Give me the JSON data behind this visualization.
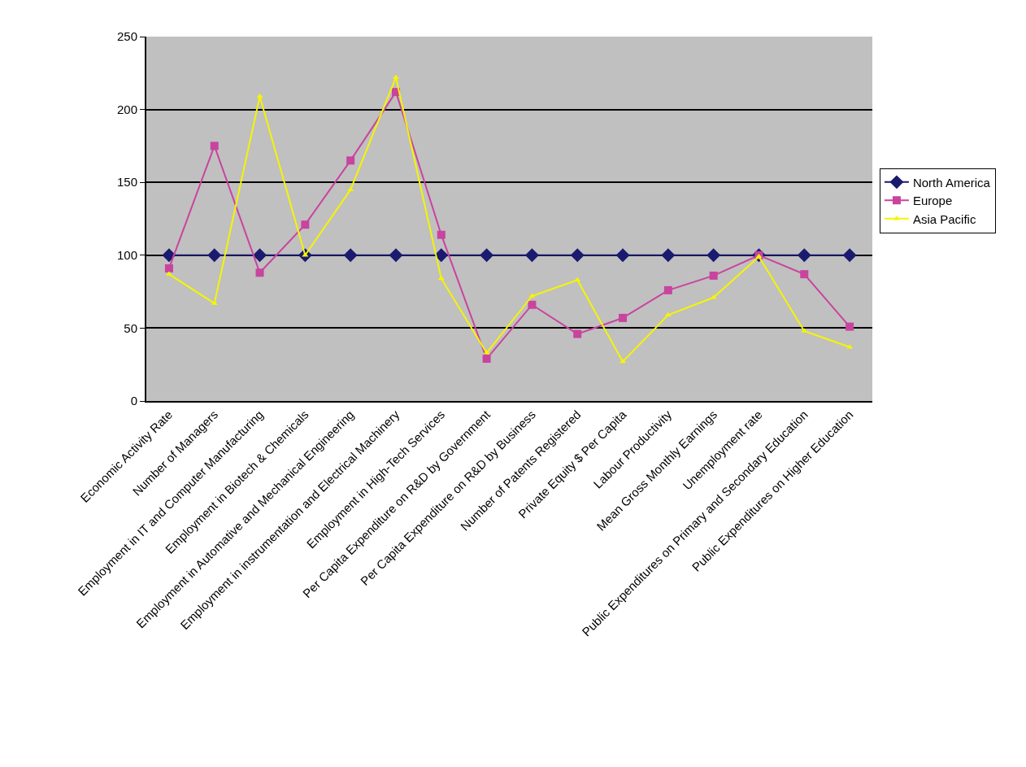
{
  "chart_data": {
    "type": "line",
    "categories": [
      "Economic Activity Rate",
      "Number of Managers",
      "Employment in IT and Computer Manufacturing",
      "Employment in Biotech & Chemicals",
      "Employment in Automative and Mechanical Engineering",
      "Employment in instrumentation and Electrical Machinery",
      "Employment in High-Tech Services",
      "Per Capita Expenditure on R&D by Government",
      "Per Capita Expenditure on R&D by Business",
      "Number of Patents Registered",
      "Private Equity $ Per Capita",
      "Labour Productivity",
      "Mean Gross Monthly Earnings",
      "Unemployment rate",
      "Public Expenditures on Primary and Secondary Education",
      "Public Expenditures on Higher Education"
    ],
    "series": [
      {
        "name": "North America",
        "color": "#1a1a6e",
        "marker": "diamond",
        "values": [
          100,
          100,
          100,
          100,
          100,
          100,
          100,
          100,
          100,
          100,
          100,
          100,
          100,
          100,
          100,
          100
        ]
      },
      {
        "name": "Europe",
        "color": "#c8449e",
        "marker": "square",
        "values": [
          91,
          175,
          88,
          121,
          165,
          212,
          114,
          29,
          66,
          46,
          57,
          76,
          86,
          100,
          87,
          51
        ]
      },
      {
        "name": "Asia Pacific",
        "color": "#f5f500",
        "marker": "triangle",
        "values": [
          87,
          67,
          209,
          100,
          145,
          222,
          84,
          33,
          72,
          83,
          27,
          59,
          71,
          99,
          48,
          37
        ]
      }
    ],
    "ylim": [
      0,
      250
    ],
    "yticks": [
      0,
      50,
      100,
      150,
      200,
      250
    ],
    "grid": "y",
    "legend": "right"
  }
}
